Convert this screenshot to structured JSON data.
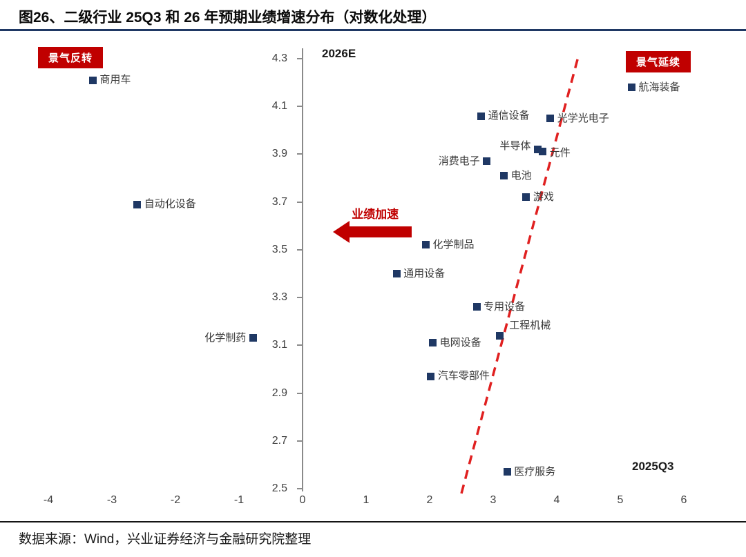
{
  "title": "图26、二级行业 25Q3 和 26 年预期业绩增速分布（对数化处理）",
  "source": "数据来源：Wind，兴业证券经济与金融研究院整理",
  "badges": {
    "top_left": "景气反转",
    "top_right": "景气延续"
  },
  "colors": {
    "point": "#1F3864",
    "badge_red": "#C00000",
    "trend_red": "#E02020",
    "title_rule": "#1F3864"
  },
  "chart_data": {
    "type": "scatter",
    "title": "二级行业 25Q3 和 26 年预期业绩增速分布（对数化处理）",
    "xlabel": "2025Q3",
    "ylabel": "2026E",
    "xlim": [
      -4,
      6
    ],
    "ylim": [
      2.5,
      4.3
    ],
    "grid": false,
    "x_ticks": [
      "-4",
      "-3",
      "-2",
      "-1",
      "0",
      "1",
      "2",
      "3",
      "4",
      "5",
      "6"
    ],
    "y_ticks": [
      "4.3",
      "4.1",
      "3.9",
      "3.7",
      "3.5",
      "3.3",
      "3.1",
      "2.9",
      "2.7",
      "2.5"
    ],
    "points": [
      {
        "label": "商用车",
        "x": -3.3,
        "y": 4.21,
        "side": "right"
      },
      {
        "label": "航海装备",
        "x": 5.18,
        "y": 4.18,
        "side": "right"
      },
      {
        "label": "通信设备",
        "x": 2.81,
        "y": 4.06,
        "side": "right"
      },
      {
        "label": "光学光电子",
        "x": 3.9,
        "y": 4.05,
        "side": "right"
      },
      {
        "label": "半导体",
        "x": 3.7,
        "y": 3.92,
        "side": "left",
        "dy": -5
      },
      {
        "label": "元件",
        "x": 3.78,
        "y": 3.91,
        "side": "right",
        "dy": 2
      },
      {
        "label": "消费电子",
        "x": 2.9,
        "y": 3.87,
        "side": "left"
      },
      {
        "label": "电池",
        "x": 3.17,
        "y": 3.81,
        "side": "right"
      },
      {
        "label": "游戏",
        "x": 3.52,
        "y": 3.72,
        "side": "right"
      },
      {
        "label": "自动化设备",
        "x": -2.6,
        "y": 3.69,
        "side": "right"
      },
      {
        "label": "化学制品",
        "x": 1.94,
        "y": 3.52,
        "side": "right"
      },
      {
        "label": "通用设备",
        "x": 1.48,
        "y": 3.4,
        "side": "right"
      },
      {
        "label": "专用设备",
        "x": 2.74,
        "y": 3.26,
        "side": "right"
      },
      {
        "label": "工程机械",
        "x": 3.1,
        "y": 3.14,
        "side": "right",
        "dx": 4,
        "dy": -14
      },
      {
        "label": "化学制药",
        "x": -0.78,
        "y": 3.13,
        "side": "left"
      },
      {
        "label": "电网设备",
        "x": 2.05,
        "y": 3.11,
        "side": "right"
      },
      {
        "label": "汽车零部件",
        "x": 2.02,
        "y": 2.97,
        "side": "right"
      },
      {
        "label": "医疗服务",
        "x": 3.22,
        "y": 2.57,
        "side": "right"
      }
    ],
    "trend_line": {
      "style": "dashed",
      "color": "#E02020",
      "from": [
        2.5,
        2.48
      ],
      "to": [
        4.33,
        4.3
      ]
    },
    "arrow": {
      "label": "业绩加速",
      "tip_x": 0.48,
      "tail_x": 1.72,
      "y": 3.575
    },
    "legend_position": "none"
  }
}
